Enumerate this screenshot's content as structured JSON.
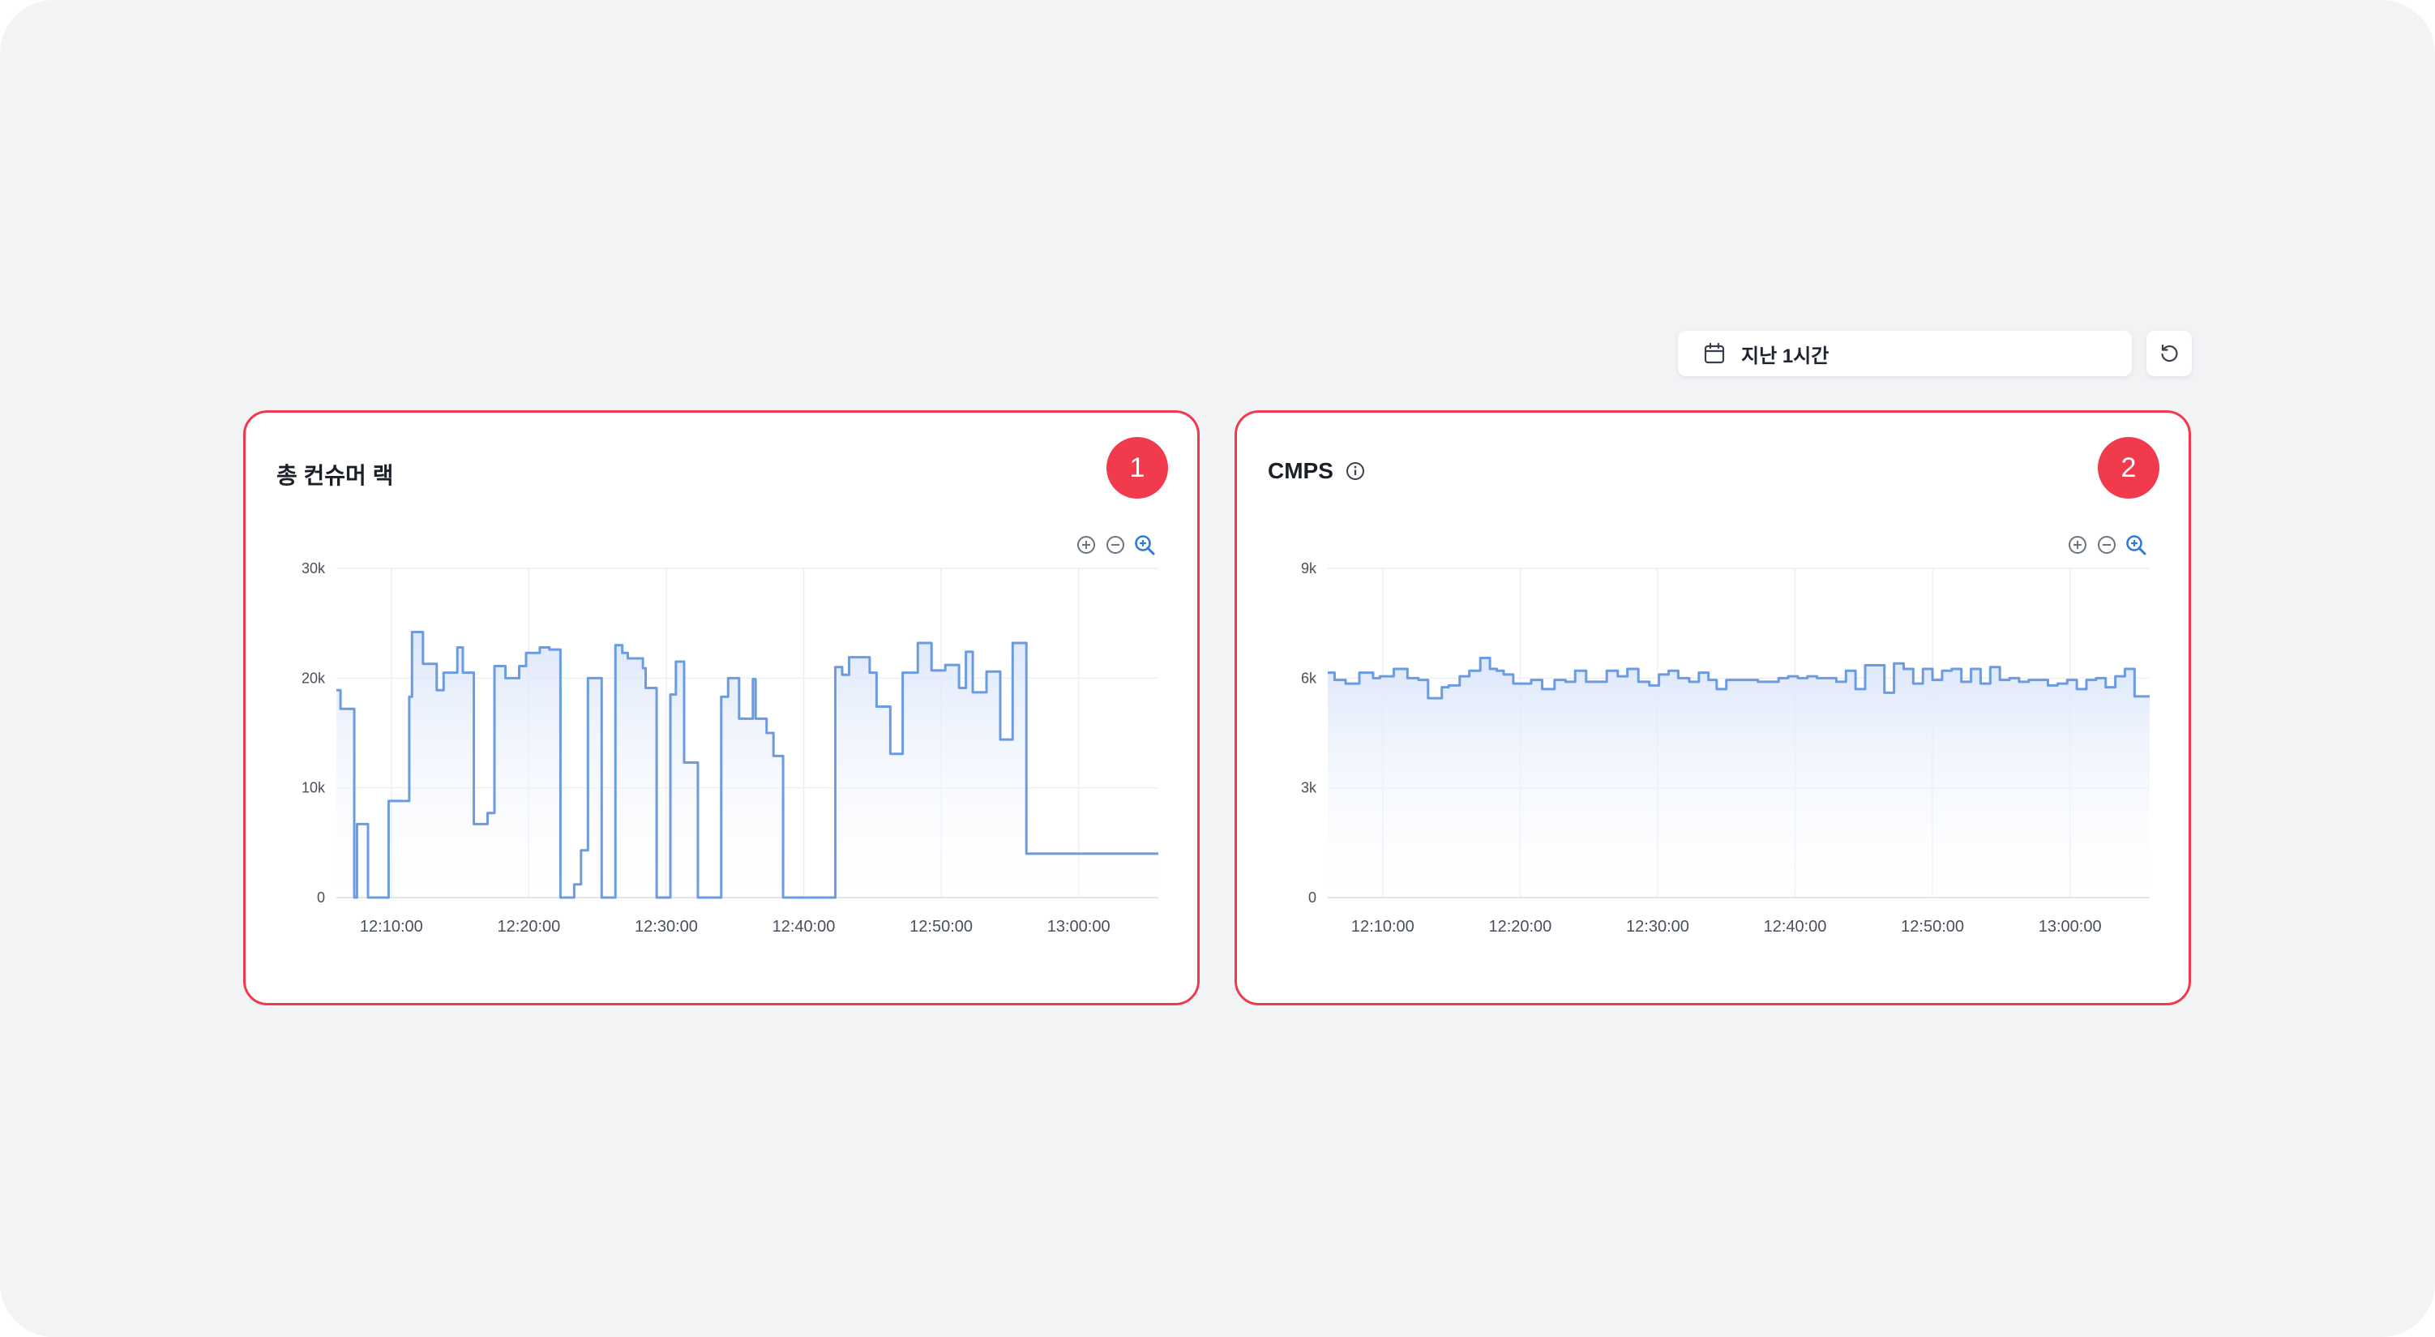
{
  "header": {
    "time_range_label": "지난 1시간",
    "icons": {
      "calendar": "calendar-icon",
      "refresh": "refresh-icon"
    }
  },
  "colors": {
    "line": "#6b9be0",
    "fill_top": "#dbe6fa",
    "marker": "#f23a4d",
    "panel_border": "#f0394c",
    "zoom_active": "#2f7bd9"
  },
  "panels": [
    {
      "title": "총 컨슈머 랙",
      "marker": "1",
      "info_icon": false
    },
    {
      "title": "CMPS",
      "marker": "2",
      "info_icon": true
    }
  ],
  "zoom_tools": [
    "zoom-in-icon",
    "zoom-out-icon",
    "zoom-reset-icon"
  ],
  "chart_data": [
    {
      "type": "area",
      "x_ticks": [
        "12:10:00",
        "12:20:00",
        "12:30:00",
        "12:40:00",
        "12:50:00",
        "13:00:00"
      ],
      "y_ticks": [
        "0",
        "10k",
        "20k",
        "30k"
      ],
      "ylim": [
        0,
        30000
      ],
      "xlim_minutes": [
        6,
        65.8
      ],
      "grid": true,
      "step": true,
      "x": [
        6,
        6.3,
        7.3,
        7.5,
        8.3,
        9.3,
        9.8,
        11.3,
        11.5,
        12.3,
        13.3,
        13.8,
        14.8,
        15.2,
        16.0,
        17.0,
        17.5,
        18.3,
        19.3,
        19.8,
        20.8,
        21.5,
        22.3,
        23.3,
        23.8,
        24.3,
        25.3,
        26.3,
        26.8,
        27.2,
        28.3,
        28.5,
        29.3,
        30.3,
        30.7,
        31.3,
        32.3,
        33.0,
        34.0,
        34.5,
        35.3,
        36.3,
        36.5,
        37.3,
        37.8,
        38.5,
        39.2,
        40.3,
        40.8,
        42.3,
        42.8,
        43.3,
        44.3,
        44.8,
        45.3,
        46.3,
        47.2,
        48.3,
        49.3,
        50.3,
        51.3,
        51.8,
        52.3,
        53.3,
        54.3,
        55.2,
        56.2,
        57.3,
        58.3,
        59.3,
        59.8,
        60.3,
        61.3,
        62.3,
        62.8,
        63.3,
        64.3,
        64.8,
        65.5,
        65.8
      ],
      "values": [
        18900,
        17200,
        0,
        6700,
        0,
        0,
        8800,
        18300,
        24200,
        21300,
        18900,
        20500,
        22800,
        20500,
        6700,
        7700,
        21100,
        20000,
        21100,
        22300,
        22800,
        22600,
        0,
        1200,
        4300,
        20000,
        0,
        23000,
        22300,
        21800,
        20900,
        19100,
        0,
        18500,
        21500,
        12300,
        0,
        0,
        18300,
        20000,
        16300,
        19900,
        16300,
        15000,
        12900,
        0,
        0,
        0,
        0,
        21000,
        20300,
        21900,
        21900,
        20500,
        17400,
        13100,
        20500,
        23200,
        20700,
        21200,
        19100,
        22400,
        18700,
        20600,
        14400,
        23200,
        4000,
        4000,
        4000,
        4000,
        4000,
        4000,
        4000,
        4000,
        4000,
        4000,
        4000,
        4000,
        4000,
        4000
      ]
    },
    {
      "type": "area",
      "x_ticks": [
        "12:10:00",
        "12:20:00",
        "12:30:00",
        "12:40:00",
        "12:50:00",
        "13:00:00"
      ],
      "y_ticks": [
        "0",
        "3k",
        "6k",
        "9k"
      ],
      "ylim": [
        0,
        9000
      ],
      "xlim_minutes": [
        6,
        65.8
      ],
      "grid": true,
      "step": true,
      "x": [
        6,
        6.5,
        7.3,
        8.3,
        9.3,
        9.8,
        10.8,
        11.8,
        12.6,
        13.3,
        14.3,
        14.8,
        15.6,
        16.3,
        17.1,
        17.8,
        18.3,
        18.8,
        19.5,
        20.2,
        20.8,
        21.6,
        22.5,
        23.3,
        24.0,
        24.8,
        25.3,
        26.3,
        27.1,
        27.8,
        28.6,
        29.4,
        30.1,
        30.8,
        31.5,
        32.3,
        33.0,
        33.7,
        34.3,
        35.0,
        35.8,
        36.5,
        37.3,
        38.0,
        38.8,
        39.5,
        40.2,
        40.9,
        41.6,
        42.3,
        43.0,
        43.7,
        44.4,
        45.1,
        45.8,
        46.5,
        47.2,
        47.9,
        48.6,
        49.3,
        50.0,
        50.7,
        51.4,
        52.1,
        52.8,
        53.5,
        54.2,
        54.9,
        55.6,
        56.3,
        57.0,
        57.7,
        58.4,
        59.1,
        59.8,
        60.5,
        61.2,
        61.9,
        62.6,
        63.3,
        64.0,
        64.7,
        65.4,
        65.8
      ],
      "values": [
        6150,
        5950,
        5850,
        6150,
        6000,
        6050,
        6250,
        6000,
        5950,
        5450,
        5750,
        5800,
        6050,
        6200,
        6550,
        6250,
        6200,
        6100,
        5850,
        5850,
        5950,
        5700,
        5950,
        5900,
        6200,
        5900,
        5900,
        6200,
        6050,
        6250,
        5900,
        5800,
        6100,
        6200,
        6000,
        5900,
        6150,
        5950,
        5700,
        5950,
        5950,
        5950,
        5900,
        5900,
        6000,
        6050,
        6000,
        6050,
        6000,
        6000,
        5900,
        6200,
        5700,
        6350,
        6350,
        5600,
        6400,
        6250,
        5850,
        6250,
        5950,
        6200,
        6250,
        5900,
        6250,
        5850,
        6300,
        5950,
        6000,
        5900,
        5950,
        5950,
        5800,
        5850,
        5950,
        5700,
        5950,
        6000,
        5750,
        6050,
        6250,
        5500,
        5500,
        5500
      ]
    }
  ]
}
